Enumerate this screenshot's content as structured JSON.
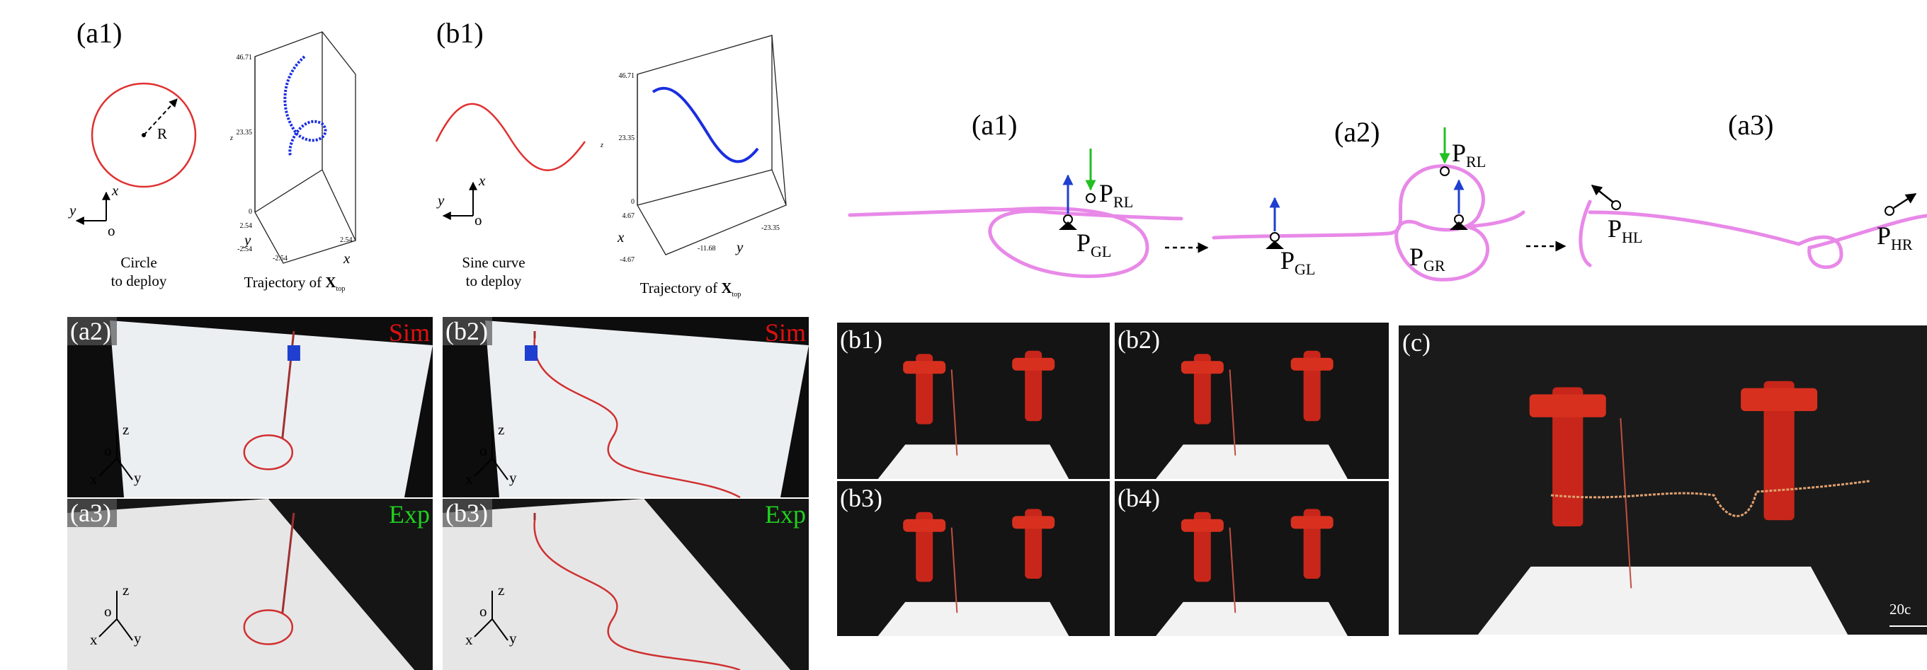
{
  "left": {
    "a1": {
      "label": "(a1)",
      "radius": "R",
      "axes": {
        "x": "x",
        "y": "y",
        "o": "o"
      },
      "caption": [
        "Circle",
        "to deploy"
      ],
      "plot": {
        "zticks": [
          "46.71",
          "23.35",
          "0"
        ],
        "z": "z",
        "yticks": [
          "2.54",
          "-2.54"
        ],
        "y": "y",
        "xticks": [
          "-2.54",
          "2.54"
        ],
        "x": "x",
        "caption": "Trajectory of ",
        "bold": "X",
        "sub": "top"
      }
    },
    "b1": {
      "label": "(b1)",
      "axes": {
        "x": "x",
        "y": "y",
        "o": "o"
      },
      "caption": [
        "Sine curve",
        "to deploy"
      ],
      "plot": {
        "zticks": [
          "46.71",
          "23.35",
          "0"
        ],
        "z": "z",
        "xticks": [
          "4.67",
          "-4.67"
        ],
        "x": "x",
        "yticks": [
          "-11.68",
          "-23.35"
        ],
        "y": "y",
        "caption": "Trajectory of ",
        "bold": "X",
        "sub": "top"
      }
    },
    "photos": [
      {
        "label": "(a2)",
        "tag": "Sim",
        "axes": [
          "z",
          "o",
          "x",
          "y"
        ]
      },
      {
        "label": "(b2)",
        "tag": "Sim",
        "axes": [
          "z",
          "o",
          "x",
          "y"
        ]
      },
      {
        "label": "(a3)",
        "tag": "Exp",
        "axes": [
          "z",
          "o",
          "x",
          "y"
        ]
      },
      {
        "label": "(b3)",
        "tag": "Exp",
        "axes": [
          "z",
          "o",
          "x",
          "y"
        ]
      }
    ]
  },
  "right": {
    "steps": [
      {
        "label": "(a1)",
        "points": [
          {
            "p": "P",
            "sub": "RL"
          },
          {
            "p": "P",
            "sub": "GL"
          }
        ]
      },
      {
        "label": "(a2)",
        "points": [
          {
            "p": "P",
            "sub": "GL"
          },
          {
            "p": "P",
            "sub": "RL"
          },
          {
            "p": "P",
            "sub": "GR"
          }
        ]
      },
      {
        "label": "(a3)",
        "points": [
          {
            "p": "P",
            "sub": "HL"
          },
          {
            "p": "P",
            "sub": "HR"
          }
        ]
      }
    ],
    "photos": [
      "(b1)",
      "(b2)",
      "(b3)",
      "(b4)"
    ],
    "main_photo": {
      "label": "(c)",
      "scale": "20c"
    }
  }
}
